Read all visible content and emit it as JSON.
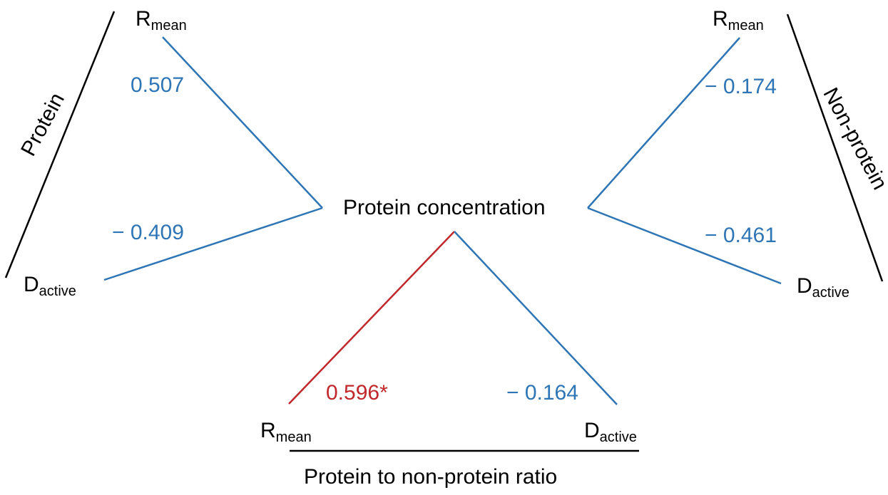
{
  "center": {
    "label": "Protein concentration"
  },
  "left": {
    "group_label": "Protein",
    "r_mean": {
      "main": "R",
      "sub": "mean",
      "coefficient": "0.507"
    },
    "d_active": {
      "main": "D",
      "sub": "active",
      "coefficient": "− 0.409"
    }
  },
  "right": {
    "group_label": "Non-protein",
    "r_mean": {
      "main": "R",
      "sub": "mean",
      "coefficient": "− 0.174"
    },
    "d_active": {
      "main": "D",
      "sub": "active",
      "coefficient": "− 0.461"
    }
  },
  "bottom": {
    "group_label": "Protein to non-protein ratio",
    "r_mean": {
      "main": "R",
      "sub": "mean",
      "coefficient": "0.596*"
    },
    "d_active": {
      "main": "D",
      "sub": "active",
      "coefficient": "− 0.164"
    }
  },
  "colors": {
    "nonsignificant": "#2e75b6",
    "significant": "#c0282c",
    "text": "#000000",
    "group_line": "#000000"
  }
}
